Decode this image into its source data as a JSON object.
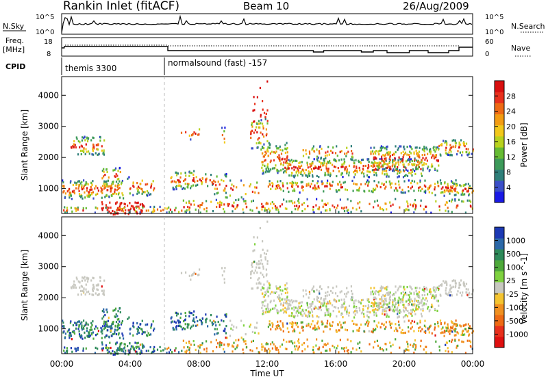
{
  "header": {
    "title": "Rankin Inlet (fitACF)",
    "beam": "Beam 10",
    "date": "26/Aug/2009"
  },
  "summary": {
    "nsky_label": "N.Sky",
    "nsky_ticks": [
      "10^5",
      "10^0"
    ],
    "nsearch_label": "N.Search",
    "freq_label_1": "Freq.",
    "freq_label_2": "[MHz]",
    "freq_ticks": [
      "18",
      "8"
    ],
    "nave_label": "Nave",
    "nave_ticks": [
      "60",
      "0"
    ],
    "cpid_label": "CPID",
    "cpid_segments": [
      {
        "name": "themis 3300",
        "start_hour": 0,
        "end_hour": 6
      },
      {
        "name": "normalsound (fast) -157",
        "start_hour": 6,
        "end_hour": 24
      }
    ]
  },
  "chart_data": [
    {
      "type": "heatmap",
      "panel": "power",
      "ylabel": "Slant Range [km]",
      "xlabel": "",
      "xlim": [
        0,
        24
      ],
      "ylim": [
        200,
        4600
      ],
      "yticks": [
        1000,
        2000,
        3000,
        4000
      ],
      "colorbar": {
        "label": "Power [dB]",
        "ticks": [
          4,
          8,
          12,
          16,
          20,
          24,
          28
        ],
        "colors": [
          "#1919e6",
          "#3b4fc8",
          "#2f7f7a",
          "#3d9a5a",
          "#66bb33",
          "#b8d21e",
          "#f2c81a",
          "#f39c12",
          "#ee6a14",
          "#e8301c",
          "#d90f0f"
        ]
      }
    },
    {
      "type": "heatmap",
      "panel": "velocity",
      "ylabel": "Slant Range [km]",
      "xlabel": "Time UT",
      "xlim": [
        0,
        24
      ],
      "ylim": [
        200,
        4600
      ],
      "xticks": [
        "00:00",
        "04:00",
        "08:00",
        "12:00",
        "16:00",
        "20:00",
        "00:00"
      ],
      "yticks": [
        1000,
        2000,
        3000,
        4000
      ],
      "colorbar": {
        "label": "Velocity [m s^-1]",
        "ticks": [
          1000,
          500,
          100,
          25,
          -25,
          -100,
          -500,
          -1000
        ],
        "colors": [
          "#1c39b4",
          "#2b68a8",
          "#2e8a5a",
          "#4ea93a",
          "#7fd23f",
          "#c8c8c0",
          "#f4c430",
          "#f09020",
          "#ee6a14",
          "#e8301c",
          "#e01010"
        ]
      }
    }
  ]
}
